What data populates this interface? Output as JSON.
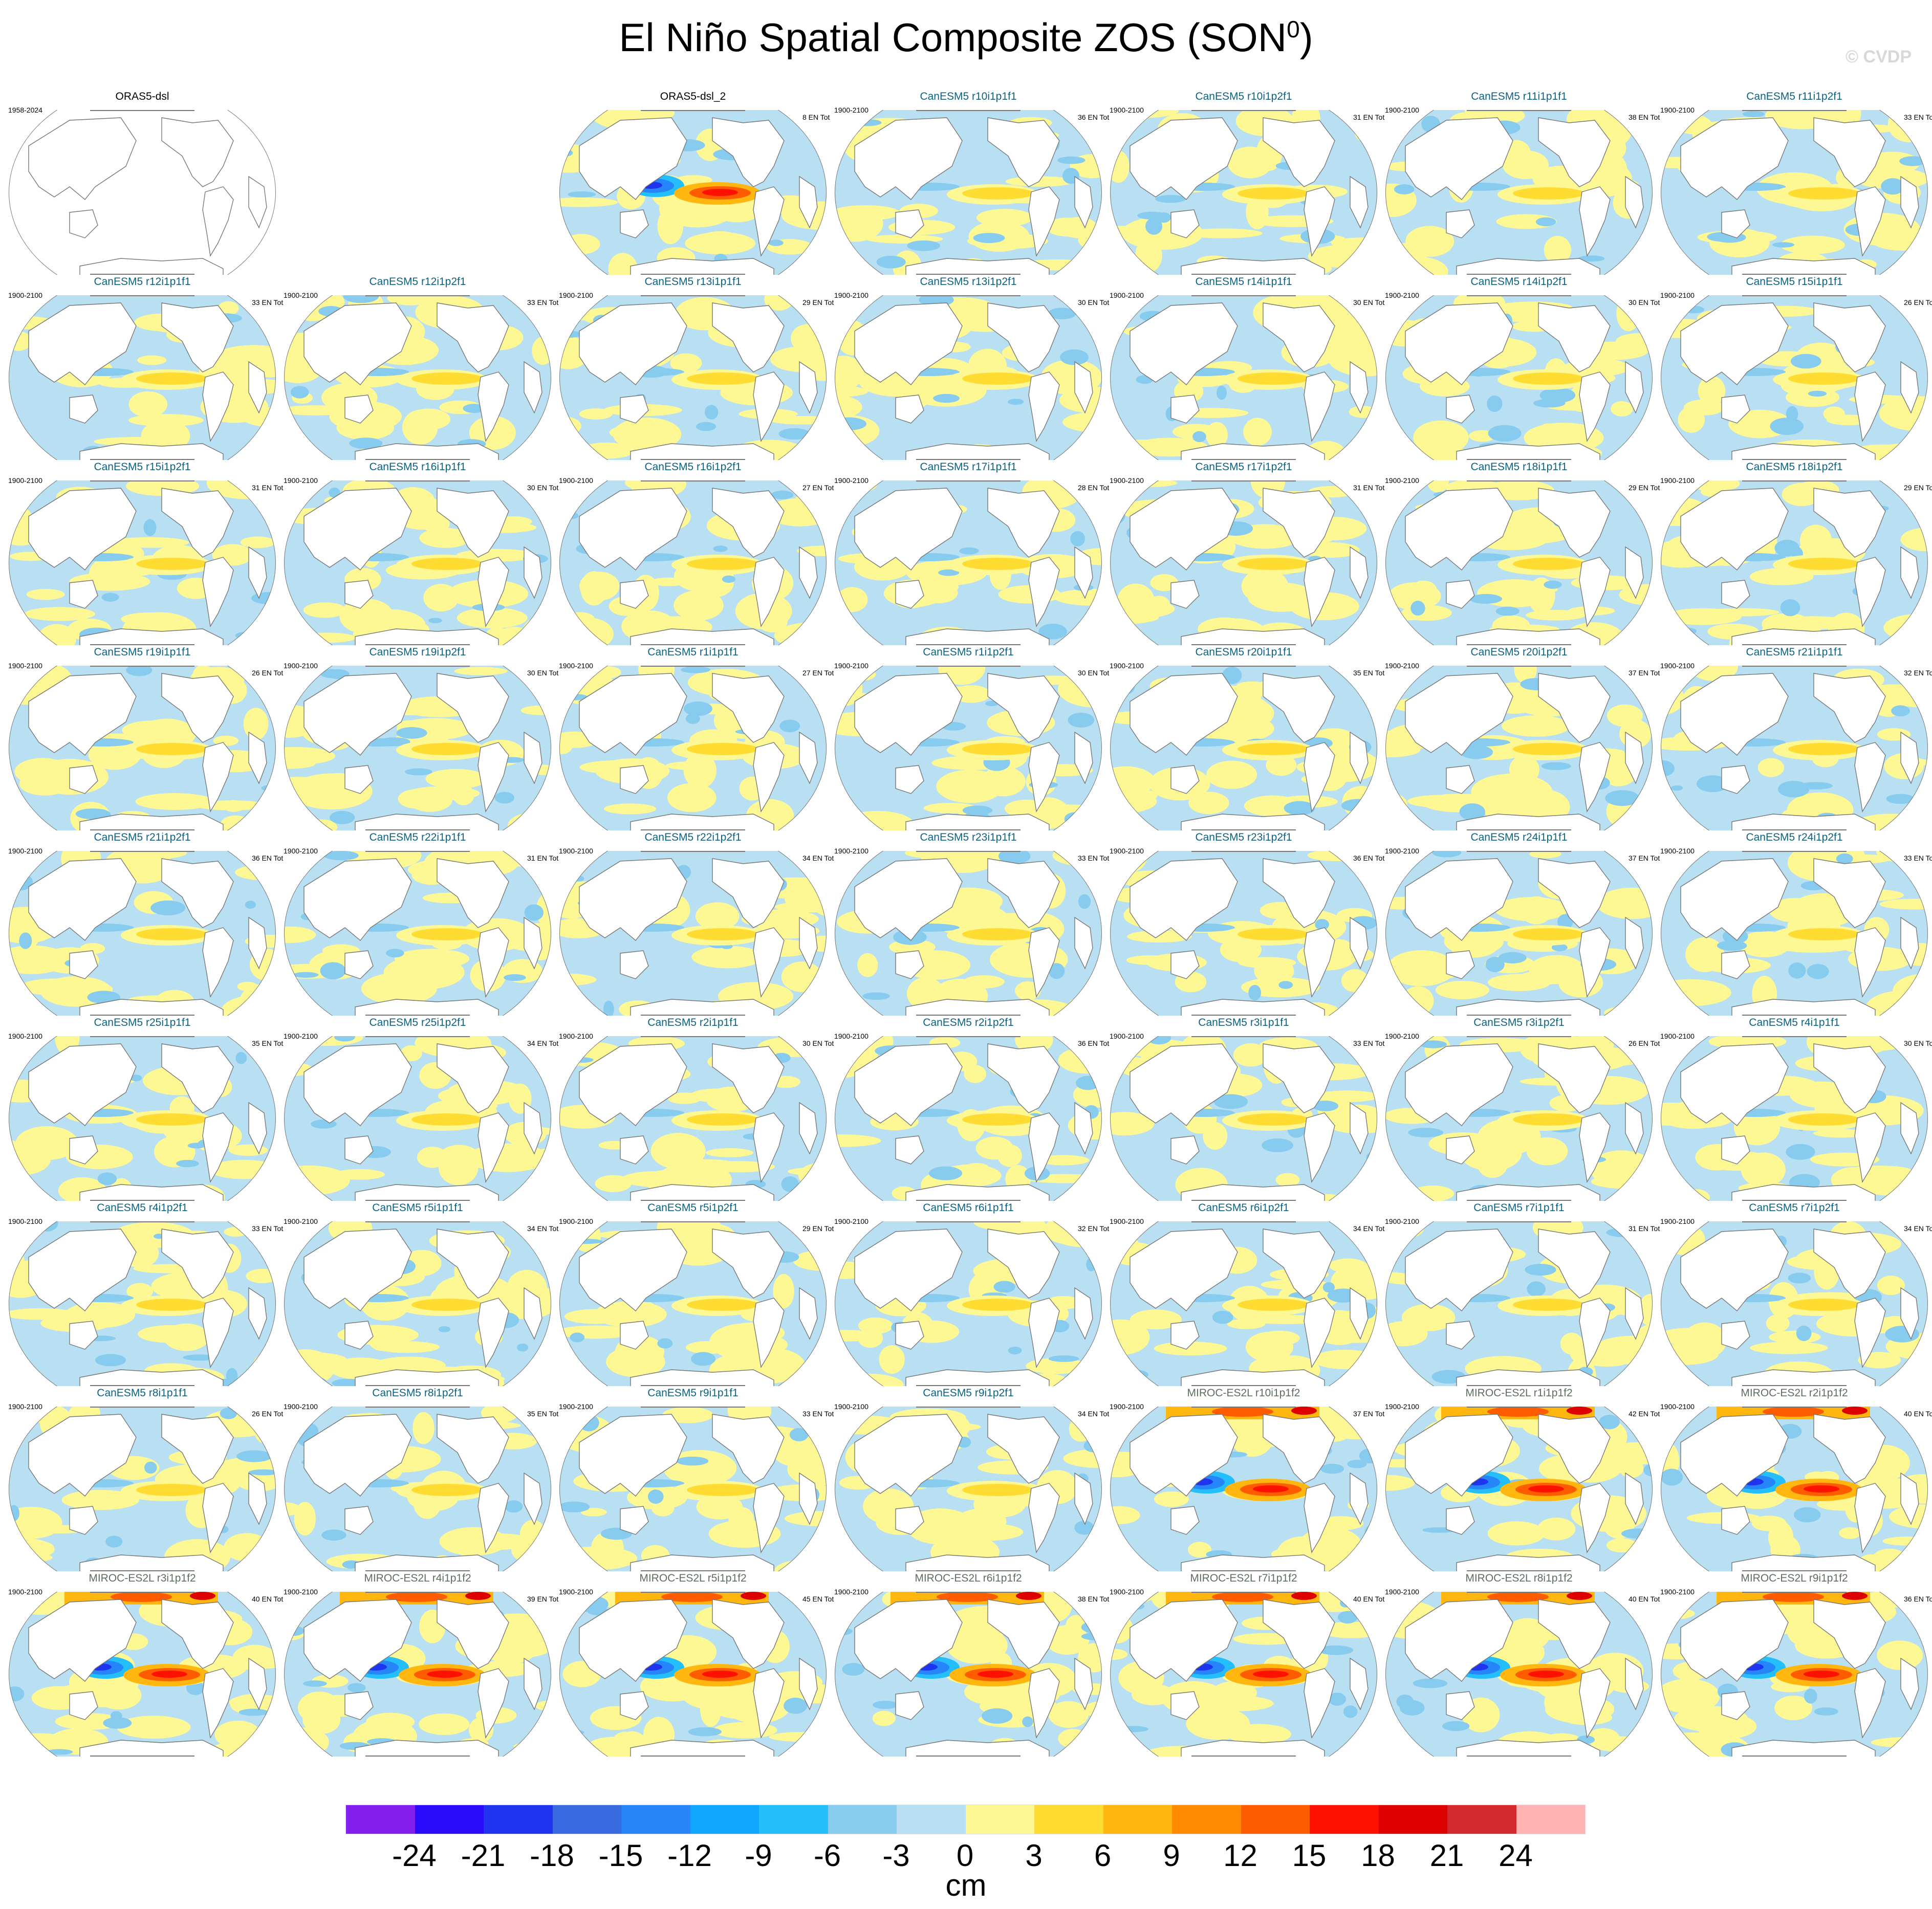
{
  "title": "El Niño Spatial Composite ZOS (SON",
  "title_sup": "0",
  "title_close": ")",
  "copyright": "© CVDP",
  "panels": [
    {
      "title": "ORAS5-dsl",
      "period": "1958-2024",
      "count": "",
      "kind": "obs-empty"
    },
    null,
    {
      "title": "ORAS5-dsl_2",
      "period": "",
      "count": "8 EN Tot",
      "kind": "obs"
    },
    {
      "title": "CanESM5 r10i1p1f1",
      "period": "1900-2100",
      "count": "36 EN Tot",
      "kind": "canesm"
    },
    {
      "title": "CanESM5 r10i1p2f1",
      "period": "1900-2100",
      "count": "31 EN Tot",
      "kind": "canesm"
    },
    {
      "title": "CanESM5 r11i1p1f1",
      "period": "1900-2100",
      "count": "38 EN Tot",
      "kind": "canesm"
    },
    {
      "title": "CanESM5 r11i1p2f1",
      "period": "1900-2100",
      "count": "33 EN Tot",
      "kind": "canesm"
    },
    {
      "title": "CanESM5 r12i1p1f1",
      "period": "1900-2100",
      "count": "33 EN Tot",
      "kind": "canesm"
    },
    {
      "title": "CanESM5 r12i1p2f1",
      "period": "1900-2100",
      "count": "33 EN Tot",
      "kind": "canesm"
    },
    {
      "title": "CanESM5 r13i1p1f1",
      "period": "1900-2100",
      "count": "29 EN Tot",
      "kind": "canesm"
    },
    {
      "title": "CanESM5 r13i1p2f1",
      "period": "1900-2100",
      "count": "30 EN Tot",
      "kind": "canesm"
    },
    {
      "title": "CanESM5 r14i1p1f1",
      "period": "1900-2100",
      "count": "30 EN Tot",
      "kind": "canesm"
    },
    {
      "title": "CanESM5 r14i1p2f1",
      "period": "1900-2100",
      "count": "30 EN Tot",
      "kind": "canesm"
    },
    {
      "title": "CanESM5 r15i1p1f1",
      "period": "1900-2100",
      "count": "26 EN Tot",
      "kind": "canesm"
    },
    {
      "title": "CanESM5 r15i1p2f1",
      "period": "1900-2100",
      "count": "31 EN Tot",
      "kind": "canesm"
    },
    {
      "title": "CanESM5 r16i1p1f1",
      "period": "1900-2100",
      "count": "30 EN Tot",
      "kind": "canesm"
    },
    {
      "title": "CanESM5 r16i1p2f1",
      "period": "1900-2100",
      "count": "27 EN Tot",
      "kind": "canesm"
    },
    {
      "title": "CanESM5 r17i1p1f1",
      "period": "1900-2100",
      "count": "28 EN Tot",
      "kind": "canesm"
    },
    {
      "title": "CanESM5 r17i1p2f1",
      "period": "1900-2100",
      "count": "31 EN Tot",
      "kind": "canesm"
    },
    {
      "title": "CanESM5 r18i1p1f1",
      "period": "1900-2100",
      "count": "29 EN Tot",
      "kind": "canesm"
    },
    {
      "title": "CanESM5 r18i1p2f1",
      "period": "1900-2100",
      "count": "29 EN Tot",
      "kind": "canesm"
    },
    {
      "title": "CanESM5 r19i1p1f1",
      "period": "1900-2100",
      "count": "26 EN Tot",
      "kind": "canesm"
    },
    {
      "title": "CanESM5 r19i1p2f1",
      "period": "1900-2100",
      "count": "30 EN Tot",
      "kind": "canesm"
    },
    {
      "title": "CanESM5 r1i1p1f1",
      "period": "1900-2100",
      "count": "27 EN Tot",
      "kind": "canesm"
    },
    {
      "title": "CanESM5 r1i1p2f1",
      "period": "1900-2100",
      "count": "30 EN Tot",
      "kind": "canesm"
    },
    {
      "title": "CanESM5 r20i1p1f1",
      "period": "1900-2100",
      "count": "35 EN Tot",
      "kind": "canesm"
    },
    {
      "title": "CanESM5 r20i1p2f1",
      "period": "1900-2100",
      "count": "37 EN Tot",
      "kind": "canesm"
    },
    {
      "title": "CanESM5 r21i1p1f1",
      "period": "1900-2100",
      "count": "32 EN Tot",
      "kind": "canesm"
    },
    {
      "title": "CanESM5 r21i1p2f1",
      "period": "1900-2100",
      "count": "36 EN Tot",
      "kind": "canesm"
    },
    {
      "title": "CanESM5 r22i1p1f1",
      "period": "1900-2100",
      "count": "31 EN Tot",
      "kind": "canesm"
    },
    {
      "title": "CanESM5 r22i1p2f1",
      "period": "1900-2100",
      "count": "34 EN Tot",
      "kind": "canesm"
    },
    {
      "title": "CanESM5 r23i1p1f1",
      "period": "1900-2100",
      "count": "33 EN Tot",
      "kind": "canesm"
    },
    {
      "title": "CanESM5 r23i1p2f1",
      "period": "1900-2100",
      "count": "36 EN Tot",
      "kind": "canesm"
    },
    {
      "title": "CanESM5 r24i1p1f1",
      "period": "1900-2100",
      "count": "37 EN Tot",
      "kind": "canesm"
    },
    {
      "title": "CanESM5 r24i1p2f1",
      "period": "1900-2100",
      "count": "33 EN Tot",
      "kind": "canesm"
    },
    {
      "title": "CanESM5 r25i1p1f1",
      "period": "1900-2100",
      "count": "35 EN Tot",
      "kind": "canesm"
    },
    {
      "title": "CanESM5 r25i1p2f1",
      "period": "1900-2100",
      "count": "34 EN Tot",
      "kind": "canesm"
    },
    {
      "title": "CanESM5 r2i1p1f1",
      "period": "1900-2100",
      "count": "30 EN Tot",
      "kind": "canesm"
    },
    {
      "title": "CanESM5 r2i1p2f1",
      "period": "1900-2100",
      "count": "36 EN Tot",
      "kind": "canesm"
    },
    {
      "title": "CanESM5 r3i1p1f1",
      "period": "1900-2100",
      "count": "33 EN Tot",
      "kind": "canesm"
    },
    {
      "title": "CanESM5 r3i1p2f1",
      "period": "1900-2100",
      "count": "26 EN Tot",
      "kind": "canesm"
    },
    {
      "title": "CanESM5 r4i1p1f1",
      "period": "1900-2100",
      "count": "30 EN Tot",
      "kind": "canesm"
    },
    {
      "title": "CanESM5 r4i1p2f1",
      "period": "1900-2100",
      "count": "33 EN Tot",
      "kind": "canesm"
    },
    {
      "title": "CanESM5 r5i1p1f1",
      "period": "1900-2100",
      "count": "34 EN Tot",
      "kind": "canesm"
    },
    {
      "title": "CanESM5 r5i1p2f1",
      "period": "1900-2100",
      "count": "29 EN Tot",
      "kind": "canesm"
    },
    {
      "title": "CanESM5 r6i1p1f1",
      "period": "1900-2100",
      "count": "32 EN Tot",
      "kind": "canesm"
    },
    {
      "title": "CanESM5 r6i1p2f1",
      "period": "1900-2100",
      "count": "34 EN Tot",
      "kind": "canesm"
    },
    {
      "title": "CanESM5 r7i1p1f1",
      "period": "1900-2100",
      "count": "31 EN Tot",
      "kind": "canesm"
    },
    {
      "title": "CanESM5 r7i1p2f1",
      "period": "1900-2100",
      "count": "34 EN Tot",
      "kind": "canesm"
    },
    {
      "title": "CanESM5 r8i1p1f1",
      "period": "1900-2100",
      "count": "26 EN Tot",
      "kind": "canesm"
    },
    {
      "title": "CanESM5 r8i1p2f1",
      "period": "1900-2100",
      "count": "35 EN Tot",
      "kind": "canesm"
    },
    {
      "title": "CanESM5 r9i1p1f1",
      "period": "1900-2100",
      "count": "33 EN Tot",
      "kind": "canesm"
    },
    {
      "title": "CanESM5 r9i1p2f1",
      "period": "1900-2100",
      "count": "34 EN Tot",
      "kind": "canesm"
    },
    {
      "title": "MIROC-ES2L r10i1p1f2",
      "period": "1900-2100",
      "count": "37 EN Tot",
      "kind": "miroc"
    },
    {
      "title": "MIROC-ES2L r1i1p1f2",
      "period": "1900-2100",
      "count": "42 EN Tot",
      "kind": "miroc"
    },
    {
      "title": "MIROC-ES2L r2i1p1f2",
      "period": "1900-2100",
      "count": "40 EN Tot",
      "kind": "miroc"
    },
    {
      "title": "MIROC-ES2L r3i1p1f2",
      "period": "1900-2100",
      "count": "40 EN Tot",
      "kind": "miroc"
    },
    {
      "title": "MIROC-ES2L r4i1p1f2",
      "period": "1900-2100",
      "count": "39 EN Tot",
      "kind": "miroc"
    },
    {
      "title": "MIROC-ES2L r5i1p1f2",
      "period": "1900-2100",
      "count": "45 EN Tot",
      "kind": "miroc"
    },
    {
      "title": "MIROC-ES2L r6i1p1f2",
      "period": "1900-2100",
      "count": "38 EN Tot",
      "kind": "miroc"
    },
    {
      "title": "MIROC-ES2L r7i1p1f2",
      "period": "1900-2100",
      "count": "40 EN Tot",
      "kind": "miroc"
    },
    {
      "title": "MIROC-ES2L r8i1p1f2",
      "period": "1900-2100",
      "count": "40 EN Tot",
      "kind": "miroc"
    },
    {
      "title": "MIROC-ES2L r9i1p1f2",
      "period": "1900-2100",
      "count": "36 EN Tot",
      "kind": "miroc"
    }
  ],
  "title_colors": {
    "obs": "#000000",
    "canesm": "#0b6283",
    "miroc": "#5e6e5e"
  },
  "chart_data": {
    "type": "heatmap",
    "title": "El Niño Spatial Composite ZOS (SON0)",
    "colorbar": {
      "label": "cm",
      "ticks": [
        "-24",
        "-21",
        "-18",
        "-15",
        "-12",
        "-9",
        "-6",
        "-3",
        "0",
        "3",
        "6",
        "9",
        "12",
        "15",
        "18",
        "21",
        "24"
      ],
      "colors": [
        "#8420EE",
        "#2A0AFB",
        "#1E34EE",
        "#3B6BE0",
        "#2685F9",
        "#10A5FE",
        "#24BFFB",
        "#87CBEF",
        "#B8E0F2",
        "#FEF894",
        "#FEDC32",
        "#FFB710",
        "#FF8A00",
        "#FF5C00",
        "#FF1100",
        "#DD0000",
        "#D42A2E",
        "#FFB3B3"
      ]
    }
  }
}
